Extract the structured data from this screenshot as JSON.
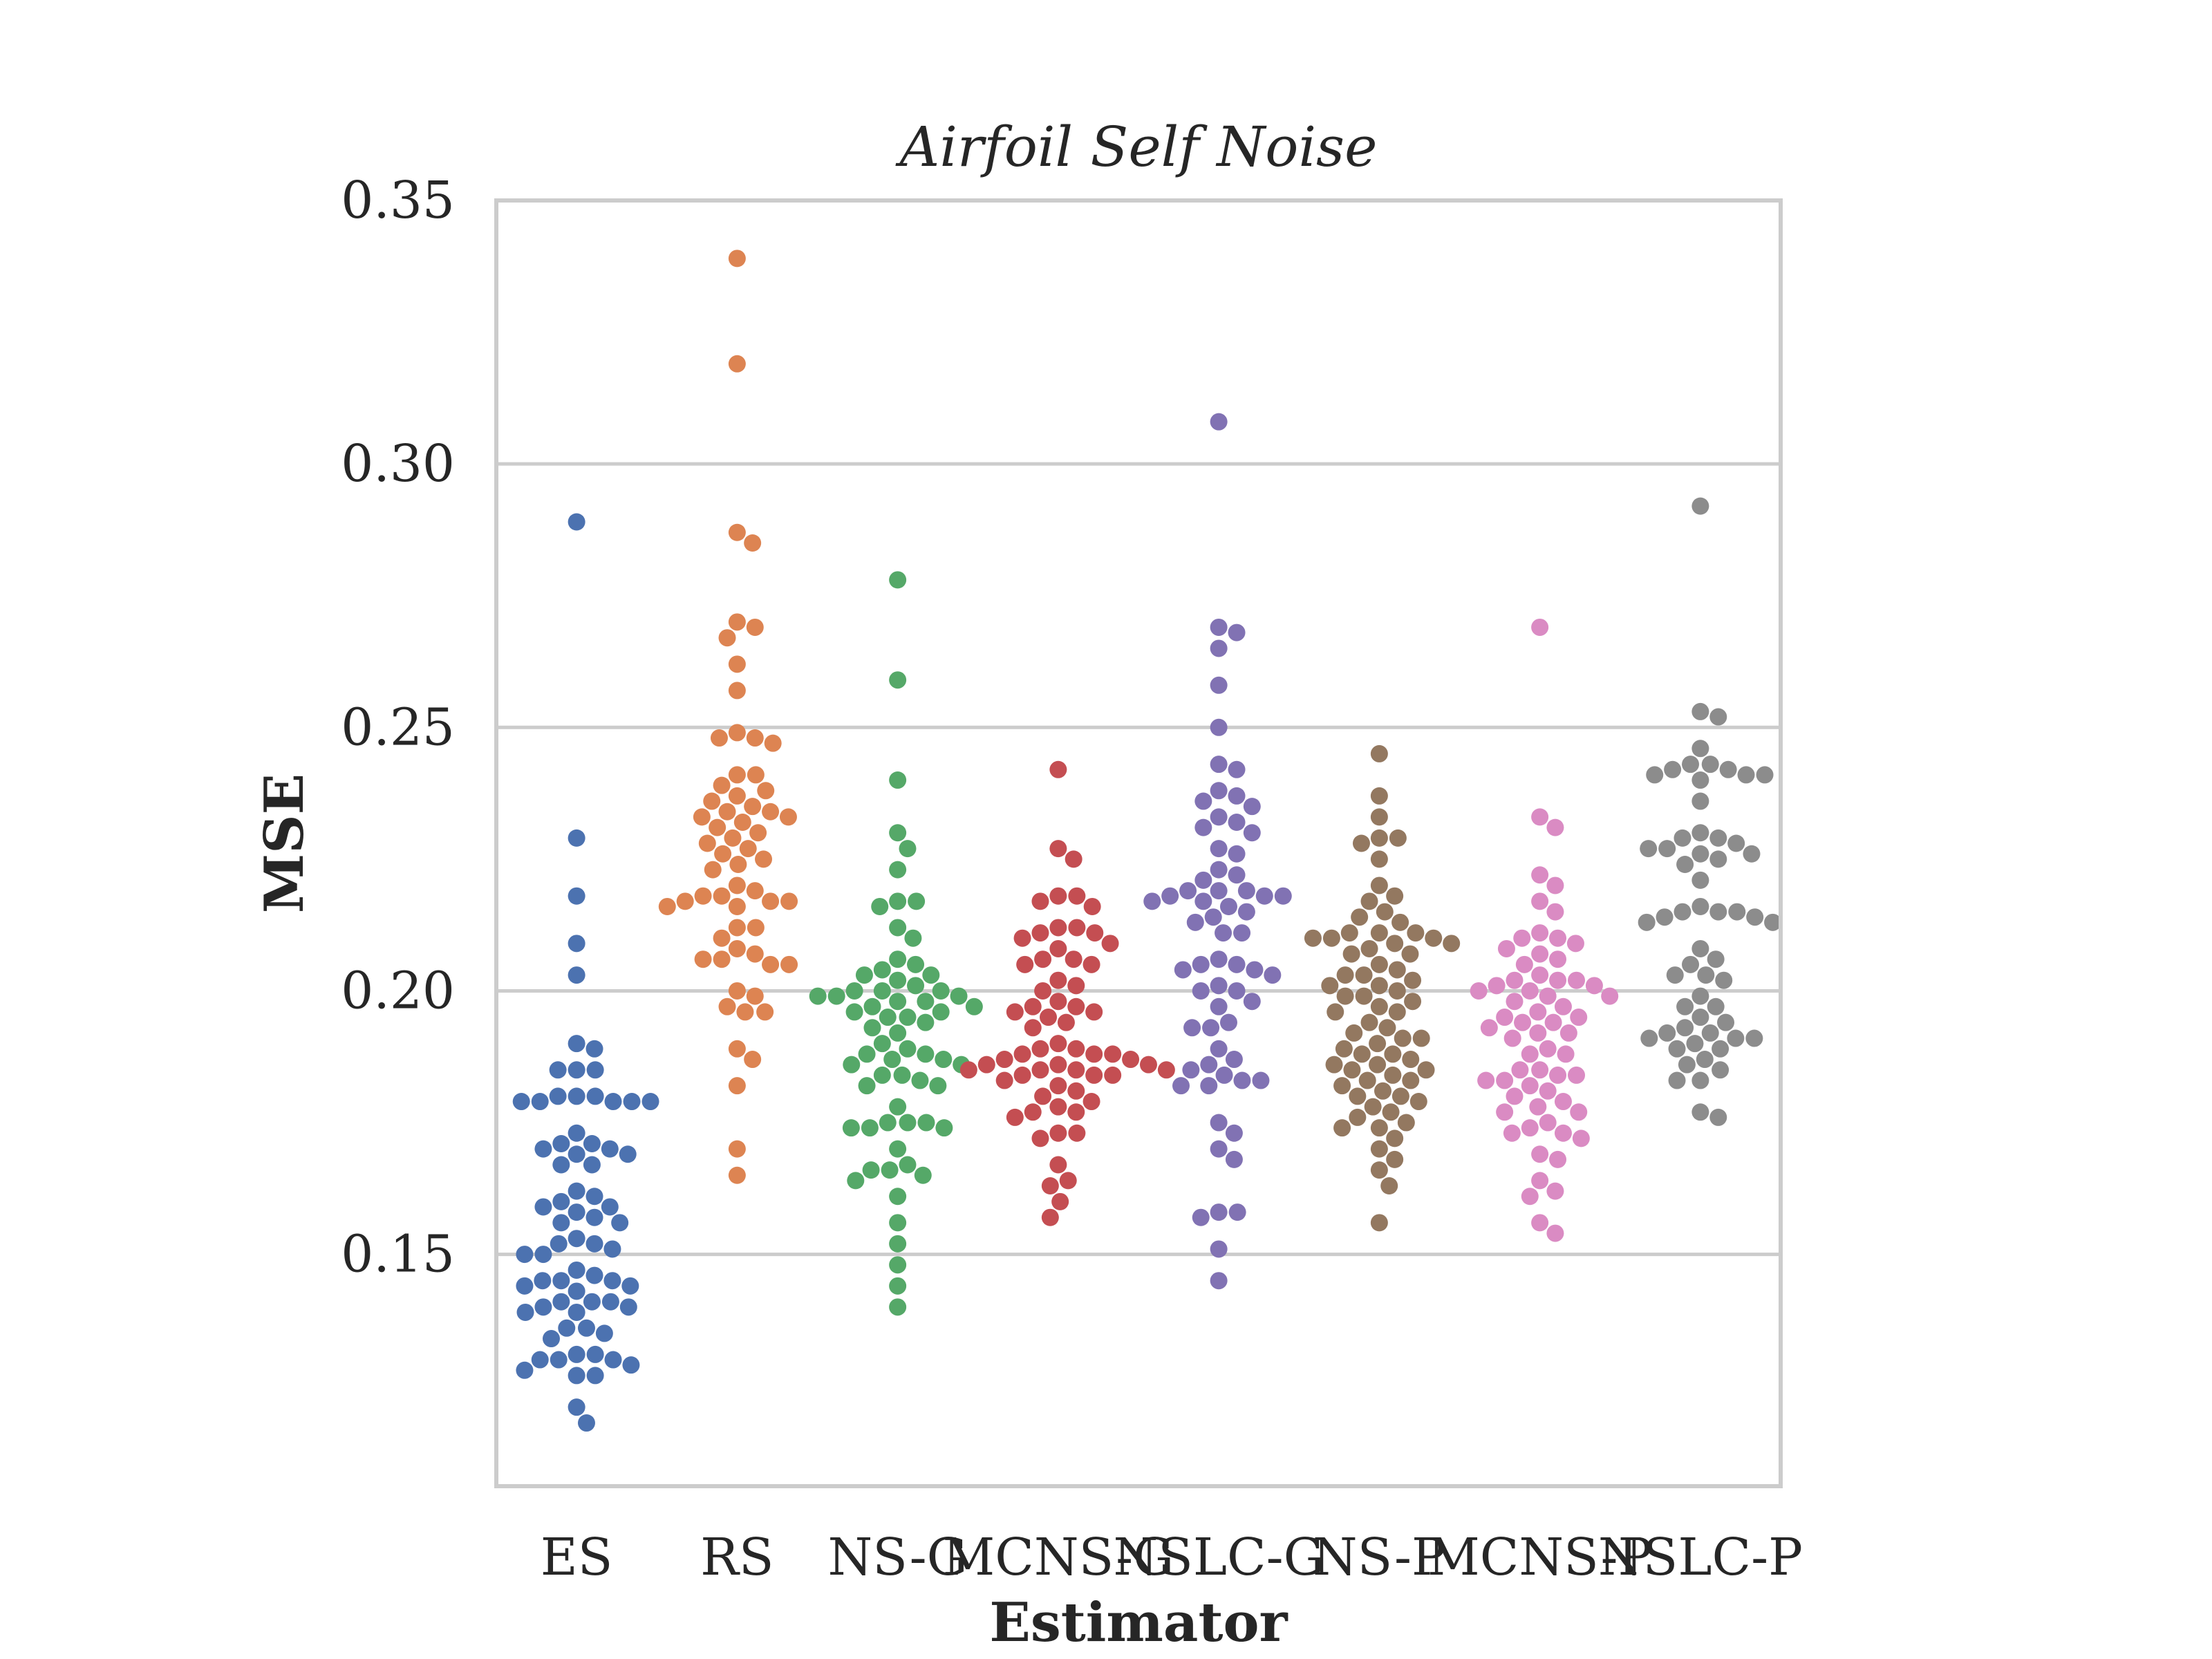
{
  "chart_data": {
    "type": "scatter",
    "subtype": "swarm",
    "title": "Airfoil Self Noise",
    "xlabel": "Estimator",
    "ylabel": "MSE",
    "ylim": [
      0.106,
      0.35
    ],
    "yticks": [
      "0.15",
      "0.20",
      "0.25",
      "0.30",
      "0.35"
    ],
    "grid": "horizontal",
    "categories": [
      "ES",
      "RS",
      "NS-G",
      "MCNS-G",
      "NSLC-G",
      "NS-P",
      "MCNS-P",
      "NSLC-P"
    ],
    "series": [
      {
        "category": "ES",
        "color": "#4c72b0",
        "values": [
          0.289,
          0.229,
          0.218,
          0.209,
          0.203,
          0.19,
          0.189,
          0.185,
          0.185,
          0.185,
          0.18,
          0.18,
          0.18,
          0.179,
          0.179,
          0.179,
          0.179,
          0.179,
          0.173,
          0.171,
          0.171,
          0.17,
          0.17,
          0.169,
          0.169,
          0.167,
          0.167,
          0.162,
          0.161,
          0.16,
          0.159,
          0.159,
          0.158,
          0.157,
          0.156,
          0.156,
          0.153,
          0.152,
          0.152,
          0.151,
          0.15,
          0.15,
          0.147,
          0.146,
          0.145,
          0.145,
          0.145,
          0.144,
          0.144,
          0.143,
          0.141,
          0.141,
          0.141,
          0.14,
          0.14,
          0.139,
          0.139,
          0.136,
          0.136,
          0.135,
          0.134,
          0.131,
          0.131,
          0.13,
          0.13,
          0.13,
          0.129,
          0.128,
          0.127,
          0.127,
          0.121,
          0.118
        ]
      },
      {
        "category": "RS",
        "color": "#dd8452",
        "values": [
          0.339,
          0.319,
          0.287,
          0.285,
          0.27,
          0.269,
          0.267,
          0.262,
          0.257,
          0.249,
          0.248,
          0.248,
          0.247,
          0.241,
          0.241,
          0.239,
          0.238,
          0.237,
          0.236,
          0.235,
          0.234,
          0.234,
          0.233,
          0.233,
          0.232,
          0.231,
          0.23,
          0.229,
          0.228,
          0.227,
          0.226,
          0.225,
          0.224,
          0.223,
          0.22,
          0.219,
          0.218,
          0.218,
          0.217,
          0.217,
          0.217,
          0.216,
          0.216,
          0.212,
          0.212,
          0.21,
          0.208,
          0.207,
          0.206,
          0.206,
          0.205,
          0.205,
          0.2,
          0.199,
          0.197,
          0.196,
          0.196,
          0.189,
          0.187,
          0.182,
          0.17,
          0.165
        ]
      },
      {
        "category": "NS-G",
        "color": "#55a868",
        "values": [
          0.278,
          0.259,
          0.24,
          0.23,
          0.227,
          0.223,
          0.217,
          0.217,
          0.216,
          0.212,
          0.21,
          0.206,
          0.205,
          0.204,
          0.203,
          0.203,
          0.202,
          0.201,
          0.2,
          0.2,
          0.2,
          0.199,
          0.199,
          0.199,
          0.198,
          0.198,
          0.197,
          0.197,
          0.196,
          0.196,
          0.195,
          0.195,
          0.194,
          0.193,
          0.192,
          0.19,
          0.189,
          0.188,
          0.188,
          0.187,
          0.187,
          0.186,
          0.186,
          0.184,
          0.184,
          0.183,
          0.182,
          0.182,
          0.178,
          0.175,
          0.175,
          0.175,
          0.174,
          0.174,
          0.174,
          0.17,
          0.167,
          0.166,
          0.166,
          0.165,
          0.164,
          0.161,
          0.156,
          0.152,
          0.148,
          0.144,
          0.14
        ]
      },
      {
        "category": "MCNS-G",
        "color": "#c44e52",
        "values": [
          0.242,
          0.227,
          0.225,
          0.218,
          0.218,
          0.217,
          0.216,
          0.212,
          0.212,
          0.211,
          0.211,
          0.21,
          0.209,
          0.208,
          0.206,
          0.206,
          0.205,
          0.205,
          0.202,
          0.201,
          0.2,
          0.198,
          0.197,
          0.197,
          0.196,
          0.196,
          0.195,
          0.194,
          0.193,
          0.19,
          0.189,
          0.189,
          0.188,
          0.188,
          0.188,
          0.187,
          0.187,
          0.186,
          0.186,
          0.186,
          0.185,
          0.185,
          0.185,
          0.185,
          0.184,
          0.184,
          0.184,
          0.183,
          0.182,
          0.181,
          0.18,
          0.179,
          0.178,
          0.177,
          0.177,
          0.176,
          0.173,
          0.173,
          0.172,
          0.167,
          0.164,
          0.163,
          0.16,
          0.157
        ]
      },
      {
        "category": "NSLC-G",
        "color": "#8172b3",
        "values": [
          0.308,
          0.269,
          0.268,
          0.265,
          0.258,
          0.25,
          0.243,
          0.242,
          0.238,
          0.237,
          0.236,
          0.235,
          0.233,
          0.232,
          0.231,
          0.23,
          0.227,
          0.226,
          0.223,
          0.222,
          0.221,
          0.219,
          0.219,
          0.219,
          0.218,
          0.218,
          0.218,
          0.217,
          0.217,
          0.216,
          0.215,
          0.214,
          0.213,
          0.211,
          0.211,
          0.206,
          0.205,
          0.205,
          0.204,
          0.204,
          0.203,
          0.201,
          0.2,
          0.2,
          0.198,
          0.197,
          0.194,
          0.193,
          0.193,
          0.189,
          0.187,
          0.186,
          0.185,
          0.184,
          0.183,
          0.183,
          0.182,
          0.182,
          0.175,
          0.173,
          0.17,
          0.168,
          0.158,
          0.158,
          0.157,
          0.151,
          0.145
        ]
      },
      {
        "category": "NS-P",
        "color": "#937860",
        "values": [
          0.245,
          0.237,
          0.233,
          0.229,
          0.229,
          0.228,
          0.225,
          0.22,
          0.218,
          0.217,
          0.215,
          0.214,
          0.213,
          0.211,
          0.211,
          0.211,
          0.21,
          0.21,
          0.21,
          0.209,
          0.209,
          0.208,
          0.207,
          0.207,
          0.205,
          0.204,
          0.203,
          0.203,
          0.202,
          0.201,
          0.201,
          0.2,
          0.199,
          0.199,
          0.198,
          0.197,
          0.196,
          0.196,
          0.194,
          0.193,
          0.192,
          0.191,
          0.191,
          0.19,
          0.189,
          0.188,
          0.188,
          0.187,
          0.186,
          0.186,
          0.185,
          0.185,
          0.184,
          0.183,
          0.183,
          0.182,
          0.181,
          0.18,
          0.18,
          0.179,
          0.178,
          0.177,
          0.176,
          0.175,
          0.174,
          0.174,
          0.172,
          0.17,
          0.168,
          0.166,
          0.163,
          0.156
        ]
      },
      {
        "category": "MCNS-P",
        "color": "#da8bc3",
        "values": [
          0.269,
          0.233,
          0.231,
          0.222,
          0.22,
          0.217,
          0.215,
          0.211,
          0.21,
          0.21,
          0.209,
          0.208,
          0.207,
          0.206,
          0.205,
          0.203,
          0.202,
          0.202,
          0.202,
          0.201,
          0.201,
          0.2,
          0.2,
          0.199,
          0.199,
          0.198,
          0.197,
          0.196,
          0.195,
          0.195,
          0.194,
          0.194,
          0.193,
          0.192,
          0.192,
          0.191,
          0.189,
          0.188,
          0.188,
          0.185,
          0.185,
          0.184,
          0.184,
          0.183,
          0.183,
          0.182,
          0.181,
          0.18,
          0.179,
          0.178,
          0.177,
          0.177,
          0.175,
          0.174,
          0.173,
          0.173,
          0.172,
          0.169,
          0.168,
          0.164,
          0.162,
          0.161,
          0.156,
          0.154
        ]
      },
      {
        "category": "NSLC-P",
        "color": "#8c8c8c",
        "values": [
          0.292,
          0.253,
          0.252,
          0.246,
          0.243,
          0.243,
          0.242,
          0.242,
          0.241,
          0.241,
          0.241,
          0.24,
          0.236,
          0.23,
          0.229,
          0.229,
          0.228,
          0.227,
          0.227,
          0.226,
          0.226,
          0.225,
          0.224,
          0.221,
          0.216,
          0.215,
          0.215,
          0.215,
          0.214,
          0.214,
          0.213,
          0.213,
          0.208,
          0.206,
          0.205,
          0.203,
          0.203,
          0.202,
          0.199,
          0.197,
          0.197,
          0.195,
          0.194,
          0.193,
          0.192,
          0.192,
          0.191,
          0.191,
          0.191,
          0.19,
          0.189,
          0.189,
          0.187,
          0.186,
          0.185,
          0.183,
          0.183,
          0.177,
          0.176
        ]
      }
    ]
  }
}
